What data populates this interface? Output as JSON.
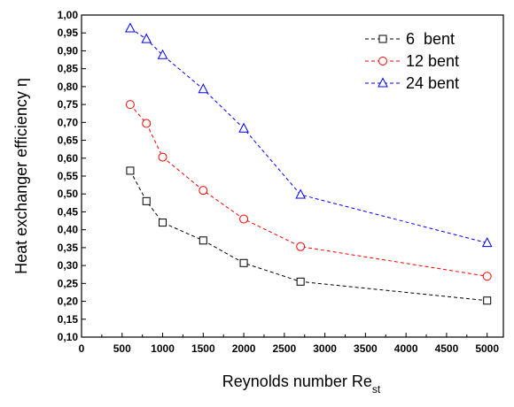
{
  "chart_data": {
    "type": "line",
    "xlabel": "Reynolds number Re",
    "xlabel_sub": "st",
    "ylabel": "Heat exchanger efficiency η",
    "xlim": [
      0,
      5200
    ],
    "ylim": [
      0.1,
      1.0
    ],
    "xticks": [
      0,
      500,
      1000,
      1500,
      2000,
      2500,
      3000,
      3500,
      4000,
      4500,
      5000
    ],
    "xtick_labels": [
      "0",
      "500",
      "1000",
      "1500",
      "2000",
      "2500",
      "3000",
      "3500",
      "4000",
      "4500",
      "5000"
    ],
    "yticks": [
      0.1,
      0.15,
      0.2,
      0.25,
      0.3,
      0.35,
      0.4,
      0.45,
      0.5,
      0.55,
      0.6,
      0.65,
      0.7,
      0.75,
      0.8,
      0.85,
      0.9,
      0.95,
      1.0
    ],
    "ytick_labels": [
      "0,10",
      "0,15",
      "0,20",
      "0,25",
      "0,30",
      "0,35",
      "0,40",
      "0,45",
      "0,50",
      "0,55",
      "0,60",
      "0,65",
      "0,70",
      "0,75",
      "0,80",
      "0,85",
      "0,90",
      "0,95",
      "1,00"
    ],
    "legend_position": "top-right",
    "grid": false,
    "series": [
      {
        "name": "6  bent",
        "color": "#000000",
        "marker": "square",
        "x": [
          600,
          800,
          1000,
          1500,
          2000,
          2700,
          5000
        ],
        "y": [
          0.565,
          0.48,
          0.42,
          0.37,
          0.307,
          0.255,
          0.202
        ]
      },
      {
        "name": "12 bent",
        "color": "#ff0000",
        "marker": "circle",
        "x": [
          600,
          800,
          1000,
          1500,
          2000,
          2700,
          5000
        ],
        "y": [
          0.75,
          0.697,
          0.603,
          0.51,
          0.43,
          0.353,
          0.27
        ]
      },
      {
        "name": "24 bent",
        "color": "#0000ff",
        "marker": "triangle",
        "x": [
          600,
          800,
          1000,
          1500,
          2000,
          2700,
          5000
        ],
        "y": [
          0.963,
          0.933,
          0.888,
          0.793,
          0.683,
          0.498,
          0.363
        ]
      }
    ]
  }
}
